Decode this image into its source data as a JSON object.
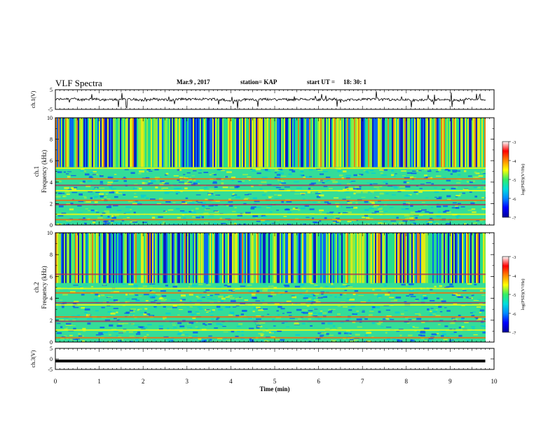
{
  "header": {
    "title": "VLF Spectra",
    "date": "Mar.9 , 2017",
    "station": "station= KAP",
    "start_label": "start UT =",
    "start_time": "18: 30: 1"
  },
  "colors": {
    "axis": "#000000",
    "trace": "#000000",
    "spectrogram_base": "#33dd99",
    "colorbar_stops": [
      "#000099",
      "#0000ff",
      "#0088ff",
      "#00dddd",
      "#33ee66",
      "#ffff00",
      "#ff8800",
      "#ff0000",
      "#ffffff"
    ]
  },
  "chart_data": [
    {
      "type": "line",
      "panel": "ch1-waveform",
      "ylabel": "ch.1(V)",
      "ylim": [
        -5,
        5
      ],
      "yticks": [
        "5",
        "-5"
      ],
      "x_range_min": [
        0,
        10
      ],
      "note_series": "noisy waveform near 0 V with spikes up to about ±2 V"
    },
    {
      "type": "heatmap",
      "panel": "ch1-spectrogram",
      "ylabel": "ch.1 Frequency (kHz)",
      "ylim": [
        0,
        10
      ],
      "yticks": [
        "0",
        "2",
        "4",
        "6",
        "8",
        "10"
      ],
      "colorbar": {
        "label": "log(PSD)(V²/Hz)",
        "range": [
          -7,
          -3
        ],
        "ticks": [
          "-3",
          "-4",
          "-5",
          "-6",
          "-7"
        ]
      },
      "bands_khz": [
        0.5,
        1.0,
        1.9,
        2.3,
        3.2,
        3.7,
        4.3,
        5.3
      ]
    },
    {
      "type": "heatmap",
      "panel": "ch2-spectrogram",
      "ylabel": "ch.2 Frequency (kHz)",
      "ylim": [
        0,
        10
      ],
      "yticks": [
        "0",
        "2",
        "4",
        "6",
        "8",
        "10"
      ],
      "colorbar": {
        "label": "log(PSD)(V²/Hz)",
        "range": [
          -7,
          -3
        ],
        "ticks": [
          "-3",
          "-4",
          "-5",
          "-6",
          "-7"
        ]
      },
      "bands_khz": [
        0.4,
        1.1,
        1.9,
        2.3,
        3.4,
        3.6,
        4.5,
        4.9,
        6.2
      ]
    },
    {
      "type": "line",
      "panel": "ch3-waveform",
      "ylabel": "ch.3(V)",
      "ylim": [
        -5,
        5
      ],
      "yticks": [
        "5",
        "0",
        "-5"
      ],
      "series": [
        {
          "x": [
            0,
            9.8
          ],
          "y": [
            -1,
            -1
          ]
        }
      ]
    }
  ],
  "x_axis": {
    "label": "Time (min)",
    "ticks": [
      "0",
      "1",
      "2",
      "3",
      "4",
      "5",
      "6",
      "7",
      "8",
      "9",
      "10"
    ],
    "range": [
      0,
      10
    ],
    "data_end_min": 9.8
  }
}
